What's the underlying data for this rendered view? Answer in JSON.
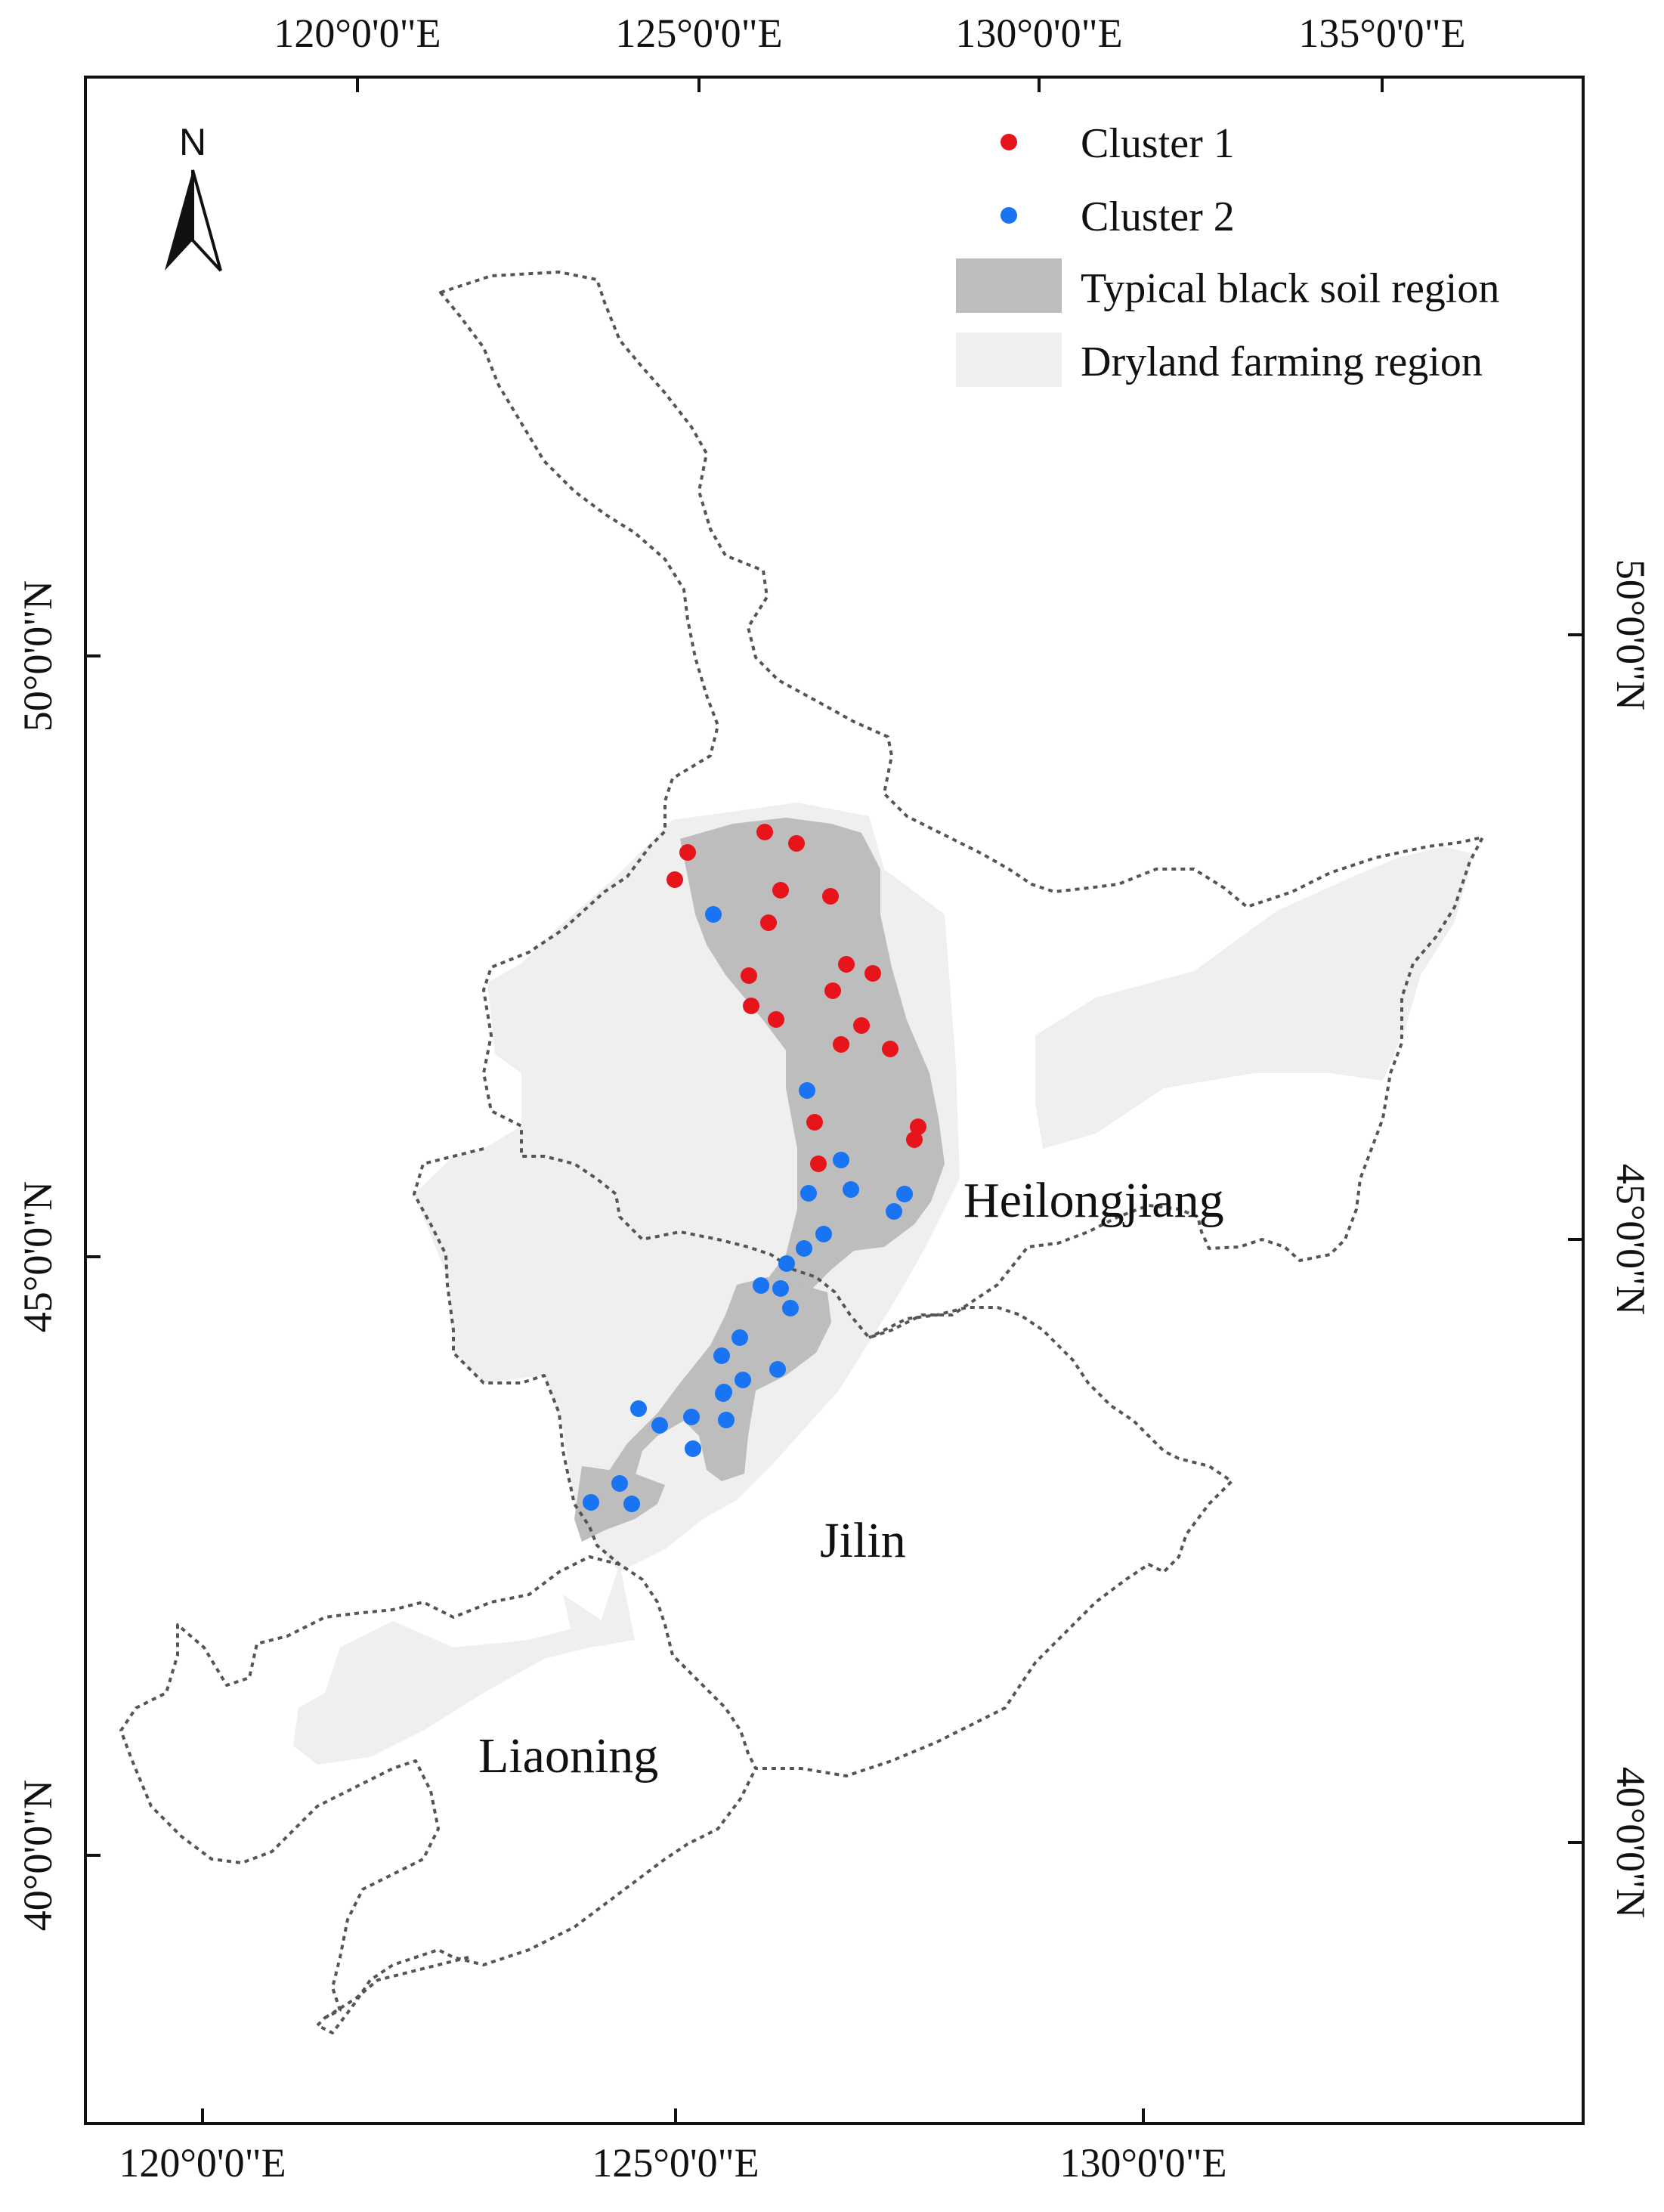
{
  "axes": {
    "top_ticks": [
      "120°0'0\"E",
      "125°0'0\"E",
      "130°0'0\"E",
      "135°0'0\"E"
    ],
    "bottom_ticks": [
      "120°0'0\"E",
      "125°0'0\"E",
      "130°0'0\"E"
    ],
    "left_ticks": [
      "50°0'0\"N",
      "45°0'0\"N",
      "40°0'0\"N"
    ],
    "right_ticks": [
      "50°0'0\"N",
      "45°0'0\"N",
      "40°0'0\"N"
    ]
  },
  "north_arrow": {
    "label": "N",
    "icon": "north-arrow-icon"
  },
  "legend": {
    "cluster1": {
      "label": "Cluster 1",
      "color": "#e8141c"
    },
    "cluster2": {
      "label": "Cluster 2",
      "color": "#1874f2"
    },
    "black_soil": {
      "label": "Typical black soil region",
      "color": "#bdbdbd"
    },
    "dryland": {
      "label": "Dryland farming region",
      "color": "#efefef"
    }
  },
  "provinces": {
    "heilongjiang": "Heilongjiang",
    "jilin": "Jilin",
    "liaoning": "Liaoning"
  },
  "boundary_color": "#555555"
}
